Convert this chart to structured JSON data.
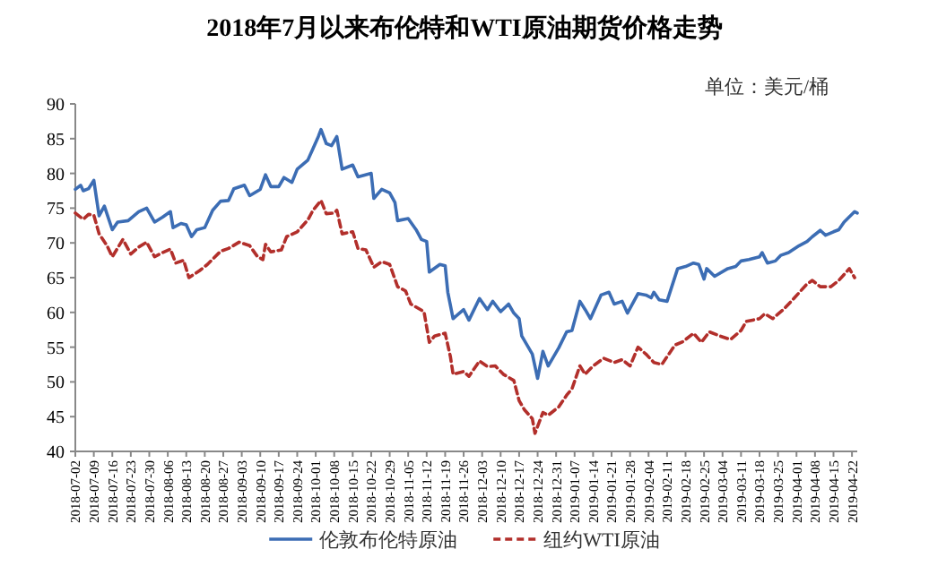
{
  "chart_data": {
    "type": "line",
    "title": "2018年7月以来布伦特和WTI原油期货价格走势",
    "annotations": [
      "单位：美元/桶"
    ],
    "legend": "bottom",
    "xlim": [
      "2018-07-02",
      "2019-04-24"
    ],
    "ylim": [
      40,
      90
    ],
    "yticks": [
      40,
      45,
      50,
      55,
      60,
      65,
      70,
      75,
      80,
      85,
      90
    ],
    "xticks": [
      {
        "value": "2018-07-02",
        "label": "2018-07-02"
      },
      {
        "value": "2018-07-09",
        "label": "2018-07-09"
      },
      {
        "value": "2018-07-16",
        "label": "2018-07-16"
      },
      {
        "value": "2018-07-23",
        "label": "2018-07-23"
      },
      {
        "value": "2018-07-30",
        "label": "2018-07-30"
      },
      {
        "value": "2018-08-06",
        "label": "2018-08-06"
      },
      {
        "value": "2018-08-13",
        "label": "2018-08-13"
      },
      {
        "value": "2018-08-20",
        "label": "2018-08-20"
      },
      {
        "value": "2018-08-27",
        "label": "2018-08-27"
      },
      {
        "value": "2018-09-03",
        "label": "2018-09-03"
      },
      {
        "value": "2018-09-10",
        "label": "2018-09-10"
      },
      {
        "value": "2018-09-17",
        "label": "2018-09-17"
      },
      {
        "value": "2018-09-24",
        "label": "2018-09-24"
      },
      {
        "value": "2018-10-01",
        "label": "2018-10-01"
      },
      {
        "value": "2018-10-08",
        "label": "2018-10-08"
      },
      {
        "value": "2018-10-15",
        "label": "2018-10-15"
      },
      {
        "value": "2018-10-22",
        "label": "2018-10-22"
      },
      {
        "value": "2018-10-29",
        "label": "2018-10-29"
      },
      {
        "value": "2018-11-05",
        "label": "2018-11-05"
      },
      {
        "value": "2018-11-12",
        "label": "2018-11-12"
      },
      {
        "value": "2018-11-19",
        "label": "2018-11-19"
      },
      {
        "value": "2018-11-26",
        "label": "2018-11-26"
      },
      {
        "value": "2018-12-03",
        "label": "2018-12-03"
      },
      {
        "value": "2018-12-10",
        "label": "2018-12-10"
      },
      {
        "value": "2018-12-17",
        "label": "2018-12-17"
      },
      {
        "value": "2018-12-24",
        "label": "2018-12-24"
      },
      {
        "value": "2018-12-31",
        "label": "2018-12-31"
      },
      {
        "value": "2019-01-07",
        "label": "2019-01-07"
      },
      {
        "value": "2019-01-14",
        "label": "2019-01-14"
      },
      {
        "value": "2019-01-21",
        "label": "2019-01-21"
      },
      {
        "value": "2019-01-28",
        "label": "2019-01-28"
      },
      {
        "value": "2019-02-04",
        "label": "2019-02-04"
      },
      {
        "value": "2019-02-11",
        "label": "2019-02-11"
      },
      {
        "value": "2019-02-18",
        "label": "2019-02-18"
      },
      {
        "value": "2019-02-25",
        "label": "2019-02-25"
      },
      {
        "value": "2019-03-04",
        "label": "2019-03-04"
      },
      {
        "value": "2019-03-11",
        "label": "2019-03-11"
      },
      {
        "value": "2019-03-18",
        "label": "2019-03-18"
      },
      {
        "value": "2019-03-25",
        "label": "2019-03-25"
      },
      {
        "value": "2019-04-01",
        "label": "2019-04-01"
      },
      {
        "value": "2019-04-08",
        "label": "2019-04-08"
      },
      {
        "value": "2019-04-15",
        "label": "2019-04-15"
      },
      {
        "value": "2019-04-22",
        "label": "2019-04-22"
      }
    ],
    "series": [
      {
        "name": "伦敦布伦特原油",
        "color": "#3c6db4",
        "line_style": "solid",
        "x": [
          "2018-07-02",
          "2018-07-04",
          "2018-07-05",
          "2018-07-07",
          "2018-07-09",
          "2018-07-11",
          "2018-07-13",
          "2018-07-16",
          "2018-07-18",
          "2018-07-22",
          "2018-07-26",
          "2018-07-29",
          "2018-08-01",
          "2018-08-04",
          "2018-08-07",
          "2018-08-08",
          "2018-08-11",
          "2018-08-13",
          "2018-08-15",
          "2018-08-17",
          "2018-08-20",
          "2018-08-23",
          "2018-08-26",
          "2018-08-29",
          "2018-08-31",
          "2018-09-04",
          "2018-09-06",
          "2018-09-10",
          "2018-09-12",
          "2018-09-14",
          "2018-09-17",
          "2018-09-19",
          "2018-09-22",
          "2018-09-24",
          "2018-09-28",
          "2018-09-30",
          "2018-10-02",
          "2018-10-03",
          "2018-10-05",
          "2018-10-07",
          "2018-10-09",
          "2018-10-11",
          "2018-10-15",
          "2018-10-17",
          "2018-10-22",
          "2018-10-23",
          "2018-10-26",
          "2018-10-29",
          "2018-10-31",
          "2018-11-01",
          "2018-11-05",
          "2018-11-08",
          "2018-11-10",
          "2018-11-12",
          "2018-11-13",
          "2018-11-17",
          "2018-11-19",
          "2018-11-20",
          "2018-11-22",
          "2018-11-26",
          "2018-11-28",
          "2018-12-02",
          "2018-12-05",
          "2018-12-07",
          "2018-12-10",
          "2018-12-13",
          "2018-12-15",
          "2018-12-17",
          "2018-12-18",
          "2018-12-22",
          "2018-12-24",
          "2018-12-26",
          "2018-12-28",
          "2019-01-01",
          "2019-01-04",
          "2019-01-06",
          "2019-01-09",
          "2019-01-11",
          "2019-01-13",
          "2019-01-17",
          "2019-01-20",
          "2019-01-22",
          "2019-01-25",
          "2019-01-27",
          "2019-01-31",
          "2019-02-03",
          "2019-02-05",
          "2019-02-06",
          "2019-02-08",
          "2019-02-11",
          "2019-02-15",
          "2019-02-18",
          "2019-02-21",
          "2019-02-23",
          "2019-02-25",
          "2019-02-26",
          "2019-03-01",
          "2019-03-06",
          "2019-03-09",
          "2019-03-11",
          "2019-03-14",
          "2019-03-18",
          "2019-03-19",
          "2019-03-21",
          "2019-03-24",
          "2019-03-26",
          "2019-03-29",
          "2019-04-02",
          "2019-04-05",
          "2019-04-07",
          "2019-04-10",
          "2019-04-12",
          "2019-04-15",
          "2019-04-17",
          "2019-04-19",
          "2019-04-23",
          "2019-04-24"
        ],
        "values": [
          77.7,
          78.3,
          77.5,
          77.8,
          79,
          73.9,
          75.3,
          71.9,
          73,
          73.2,
          74.5,
          75,
          73,
          73.7,
          74.5,
          72.2,
          72.8,
          72.6,
          70.9,
          71.9,
          72.2,
          74.7,
          76,
          76.1,
          77.8,
          78.3,
          76.8,
          77.7,
          79.8,
          78.1,
          78.1,
          79.4,
          78.7,
          80.6,
          81.9,
          83.6,
          85.3,
          86.3,
          84.3,
          84,
          85.3,
          80.6,
          81.2,
          79.5,
          80,
          76.4,
          77.7,
          77.2,
          75.8,
          73.2,
          73.5,
          71.9,
          70.5,
          70.2,
          65.8,
          66.9,
          66.7,
          62.9,
          59.1,
          60.4,
          58.9,
          62,
          60.4,
          61.6,
          60.1,
          61.2,
          59.9,
          59.1,
          56.6,
          54,
          50.5,
          54.4,
          52.3,
          54.9,
          57.2,
          57.4,
          61.6,
          60.4,
          59.1,
          62.5,
          62.9,
          61.2,
          61.6,
          59.9,
          62.7,
          62.5,
          62.1,
          62.9,
          61.8,
          61.6,
          66.3,
          66.6,
          67.1,
          66.9,
          64.8,
          66.3,
          65.2,
          66.3,
          66.6,
          67.4,
          67.6,
          68,
          68.6,
          67.1,
          67.4,
          68.2,
          68.6,
          69.6,
          70.2,
          70.9,
          71.8,
          71.1,
          71.6,
          71.9,
          73,
          74.5,
          74.3
        ]
      },
      {
        "name": "纽约WTI原油",
        "color": "#b22f2b",
        "line_style": "dashed",
        "x": [
          "2018-07-02",
          "2018-07-05",
          "2018-07-07",
          "2018-07-09",
          "2018-07-11",
          "2018-07-14",
          "2018-07-16",
          "2018-07-20",
          "2018-07-23",
          "2018-07-26",
          "2018-07-29",
          "2018-08-01",
          "2018-08-04",
          "2018-08-07",
          "2018-08-09",
          "2018-08-12",
          "2018-08-14",
          "2018-08-18",
          "2018-08-21",
          "2018-08-26",
          "2018-08-29",
          "2018-09-02",
          "2018-09-06",
          "2018-09-09",
          "2018-09-11",
          "2018-09-12",
          "2018-09-14",
          "2018-09-18",
          "2018-09-20",
          "2018-09-24",
          "2018-09-28",
          "2018-09-30",
          "2018-10-03",
          "2018-10-05",
          "2018-10-08",
          "2018-10-09",
          "2018-10-11",
          "2018-10-15",
          "2018-10-17",
          "2018-10-20",
          "2018-10-23",
          "2018-10-26",
          "2018-10-29",
          "2018-11-01",
          "2018-11-04",
          "2018-11-06",
          "2018-11-11",
          "2018-11-13",
          "2018-11-15",
          "2018-11-19",
          "2018-11-21",
          "2018-11-22",
          "2018-11-26",
          "2018-11-28",
          "2018-12-02",
          "2018-12-05",
          "2018-12-08",
          "2018-12-11",
          "2018-12-15",
          "2018-12-17",
          "2018-12-19",
          "2018-12-22",
          "2018-12-23",
          "2018-12-26",
          "2018-12-28",
          "2019-01-01",
          "2019-01-04",
          "2019-01-06",
          "2019-01-09",
          "2019-01-11",
          "2019-01-14",
          "2019-01-18",
          "2019-01-22",
          "2019-01-25",
          "2019-01-28",
          "2019-01-31",
          "2019-02-03",
          "2019-02-06",
          "2019-02-09",
          "2019-02-14",
          "2019-02-17",
          "2019-02-21",
          "2019-02-24",
          "2019-02-27",
          "2019-03-03",
          "2019-03-07",
          "2019-03-11",
          "2019-03-13",
          "2019-03-18",
          "2019-03-20",
          "2019-03-23",
          "2019-03-27",
          "2019-03-31",
          "2019-04-05",
          "2019-04-07",
          "2019-04-10",
          "2019-04-14",
          "2019-04-17",
          "2019-04-21",
          "2019-04-23"
        ],
        "values": [
          74.3,
          73.4,
          74.1,
          74,
          71.3,
          69.6,
          68,
          70.5,
          68.4,
          69.4,
          70.1,
          68,
          68.6,
          69.1,
          67.1,
          67.5,
          65,
          66,
          66.9,
          68.8,
          69.2,
          70.1,
          69.6,
          68,
          67.6,
          69.8,
          68.7,
          69,
          70.9,
          71.6,
          73.3,
          74.7,
          76.1,
          74.2,
          74.3,
          74.7,
          71.3,
          71.6,
          69.2,
          69,
          66.5,
          67.3,
          66.9,
          63.7,
          63.1,
          61.2,
          60.1,
          55.7,
          56.6,
          57,
          53.6,
          51.1,
          51.5,
          50.8,
          53,
          52.2,
          52.3,
          51.1,
          50.2,
          47.3,
          46,
          44.7,
          42.6,
          45.6,
          45.2,
          46.4,
          48.1,
          49,
          52.3,
          51.1,
          52.3,
          53.4,
          52.8,
          53.2,
          52.3,
          55,
          54,
          52.8,
          52.5,
          55.3,
          55.8,
          57,
          55.7,
          57.2,
          56.6,
          56.1,
          57.4,
          58.7,
          59.1,
          59.8,
          59.1,
          60.4,
          62,
          64.1,
          64.6,
          63.7,
          63.7,
          64.6,
          66.3,
          65
        ]
      }
    ]
  }
}
